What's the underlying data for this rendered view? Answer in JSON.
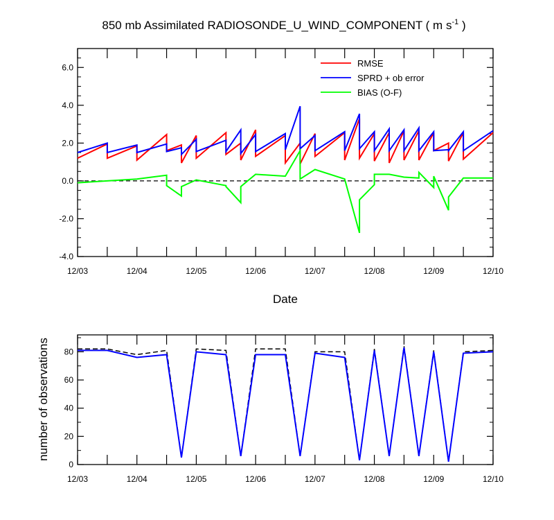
{
  "chart_data": [
    {
      "type": "line",
      "title": "850 mb Assimilated RADIOSONDE_U_WIND_COMPONENT ( m s",
      "title_units_superscript": "-1",
      "title_close": " )",
      "xlabel": "Date",
      "ylabel": "",
      "x_tick_labels": [
        "12/03",
        "12/04",
        "12/05",
        "12/06",
        "12/07",
        "12/08",
        "12/09",
        "12/10"
      ],
      "xlim": [
        0,
        7
      ],
      "ylim": [
        -4.0,
        7.0
      ],
      "y_tick_labels": [
        "-4.0",
        "-2.0",
        "0.0",
        "2.0",
        "4.0",
        "6.0"
      ],
      "y_tick_values": [
        -4,
        -2,
        0,
        2,
        4,
        6
      ],
      "zero_line": {
        "y": 0,
        "style": "dashed",
        "color": "#000000"
      },
      "legend_position": "top-right",
      "series": [
        {
          "name": "RMSE",
          "color": "#ff0000",
          "points": [
            [
              0,
              1.2
            ],
            [
              0.5,
              1.95
            ],
            [
              0.5,
              1.2
            ],
            [
              1,
              1.85
            ],
            [
              1,
              1.1
            ],
            [
              1.5,
              2.45
            ],
            [
              1.5,
              1.6
            ],
            [
              1.75,
              1.9
            ],
            [
              1.75,
              0.95
            ],
            [
              2,
              2.4
            ],
            [
              2,
              1.2
            ],
            [
              2.5,
              2.55
            ],
            [
              2.5,
              1.4
            ],
            [
              2.75,
              2.0
            ],
            [
              2.75,
              1.1
            ],
            [
              3,
              2.7
            ],
            [
              3,
              1.3
            ],
            [
              3.5,
              2.4
            ],
            [
              3.5,
              0.95
            ],
            [
              3.75,
              2.0
            ],
            [
              3.75,
              0.9
            ],
            [
              4,
              2.5
            ],
            [
              4,
              1.3
            ],
            [
              4.5,
              2.55
            ],
            [
              4.5,
              1.1
            ],
            [
              4.75,
              3.3
            ],
            [
              4.75,
              1.2
            ],
            [
              5,
              2.5
            ],
            [
              5,
              1.05
            ],
            [
              5.25,
              2.55
            ],
            [
              5.25,
              0.95
            ],
            [
              5.5,
              2.65
            ],
            [
              5.5,
              1.1
            ],
            [
              5.75,
              2.65
            ],
            [
              5.75,
              1.1
            ],
            [
              6,
              2.55
            ],
            [
              6,
              1.6
            ],
            [
              6.25,
              2.0
            ],
            [
              6.25,
              1.05
            ],
            [
              6.5,
              2.55
            ],
            [
              6.5,
              1.15
            ],
            [
              7,
              2.55
            ]
          ]
        },
        {
          "name": "SPRD + ob error",
          "color": "#0000ff",
          "points": [
            [
              0,
              1.5
            ],
            [
              0.5,
              2.0
            ],
            [
              0.5,
              1.5
            ],
            [
              1,
              1.9
            ],
            [
              1,
              1.5
            ],
            [
              1.5,
              1.95
            ],
            [
              1.5,
              1.55
            ],
            [
              1.75,
              1.75
            ],
            [
              1.75,
              1.4
            ],
            [
              2,
              2.2
            ],
            [
              2,
              1.55
            ],
            [
              2.5,
              2.15
            ],
            [
              2.5,
              1.55
            ],
            [
              2.75,
              2.7
            ],
            [
              2.75,
              1.45
            ],
            [
              3,
              2.45
            ],
            [
              3,
              1.55
            ],
            [
              3.5,
              2.5
            ],
            [
              3.5,
              1.65
            ],
            [
              3.75,
              3.95
            ],
            [
              3.75,
              1.7
            ],
            [
              4,
              2.4
            ],
            [
              4,
              1.6
            ],
            [
              4.5,
              2.6
            ],
            [
              4.5,
              1.6
            ],
            [
              4.75,
              3.55
            ],
            [
              4.75,
              1.7
            ],
            [
              5,
              2.6
            ],
            [
              5,
              1.6
            ],
            [
              5.25,
              2.75
            ],
            [
              5.25,
              1.6
            ],
            [
              5.5,
              2.7
            ],
            [
              5.5,
              1.6
            ],
            [
              5.75,
              2.8
            ],
            [
              5.75,
              1.6
            ],
            [
              6,
              2.6
            ],
            [
              6,
              1.6
            ],
            [
              6.25,
              1.65
            ],
            [
              6.25,
              1.6
            ],
            [
              6.5,
              2.6
            ],
            [
              6.5,
              1.6
            ],
            [
              7,
              2.65
            ]
          ]
        },
        {
          "name": "BIAS (O-F)",
          "color": "#00ff00",
          "points": [
            [
              0,
              -0.1
            ],
            [
              0.5,
              0.0
            ],
            [
              1,
              0.1
            ],
            [
              1.5,
              0.3
            ],
            [
              1.5,
              -0.25
            ],
            [
              1.75,
              -0.8
            ],
            [
              1.75,
              -0.3
            ],
            [
              2,
              0.05
            ],
            [
              2.5,
              -0.25
            ],
            [
              2.5,
              -0.3
            ],
            [
              2.75,
              -1.15
            ],
            [
              2.75,
              -0.3
            ],
            [
              3,
              0.35
            ],
            [
              3.5,
              0.25
            ],
            [
              3.75,
              1.6
            ],
            [
              3.75,
              0.1
            ],
            [
              4,
              0.6
            ],
            [
              4.5,
              0.1
            ],
            [
              4.75,
              -2.75
            ],
            [
              4.75,
              -1.0
            ],
            [
              5,
              -0.2
            ],
            [
              5,
              0.35
            ],
            [
              5.25,
              0.35
            ],
            [
              5.5,
              0.2
            ],
            [
              5.75,
              0.15
            ],
            [
              5.75,
              0.45
            ],
            [
              6,
              -0.35
            ],
            [
              6,
              0.25
            ],
            [
              6.25,
              -1.55
            ],
            [
              6.25,
              -0.85
            ],
            [
              6.5,
              0.15
            ],
            [
              7,
              0.15
            ]
          ]
        }
      ]
    },
    {
      "type": "line",
      "title": "",
      "xlabel": "",
      "ylabel": "number of observations",
      "x_tick_labels": [
        "12/03",
        "12/04",
        "12/05",
        "12/06",
        "12/07",
        "12/08",
        "12/09",
        "12/10"
      ],
      "xlim": [
        0,
        7
      ],
      "ylim": [
        0,
        92
      ],
      "y_tick_labels": [
        "0",
        "20",
        "40",
        "60",
        "80"
      ],
      "y_tick_values": [
        0,
        20,
        40,
        60,
        80
      ],
      "series": [
        {
          "color": "#000000",
          "style": "dashed",
          "points": [
            [
              0,
              82
            ],
            [
              0.5,
              82
            ],
            [
              1,
              78
            ],
            [
              1.5,
              81
            ],
            [
              1.75,
              5
            ],
            [
              2,
              82
            ],
            [
              2.5,
              81
            ],
            [
              2.75,
              6
            ],
            [
              3,
              82
            ],
            [
              3.5,
              82
            ],
            [
              3.75,
              6
            ],
            [
              4,
              80
            ],
            [
              4.5,
              80
            ],
            [
              4.75,
              3
            ],
            [
              5,
              82
            ],
            [
              5.25,
              6
            ],
            [
              5.5,
              84
            ],
            [
              5.75,
              6
            ],
            [
              6,
              81
            ],
            [
              6.25,
              2
            ],
            [
              6.5,
              80
            ],
            [
              7,
              81
            ]
          ]
        },
        {
          "color": "#0000ff",
          "style": "solid",
          "points": [
            [
              0,
              81
            ],
            [
              0.5,
              81
            ],
            [
              1,
              76
            ],
            [
              1.5,
              78
            ],
            [
              1.75,
              5
            ],
            [
              2,
              80
            ],
            [
              2.5,
              78
            ],
            [
              2.75,
              6
            ],
            [
              3,
              78
            ],
            [
              3.5,
              78
            ],
            [
              3.75,
              6
            ],
            [
              4,
              79
            ],
            [
              4.5,
              76
            ],
            [
              4.75,
              3
            ],
            [
              5,
              81
            ],
            [
              5.25,
              6
            ],
            [
              5.5,
              83
            ],
            [
              5.75,
              6
            ],
            [
              6,
              80
            ],
            [
              6.25,
              2
            ],
            [
              6.5,
              79
            ],
            [
              7,
              80
            ]
          ]
        }
      ]
    }
  ]
}
